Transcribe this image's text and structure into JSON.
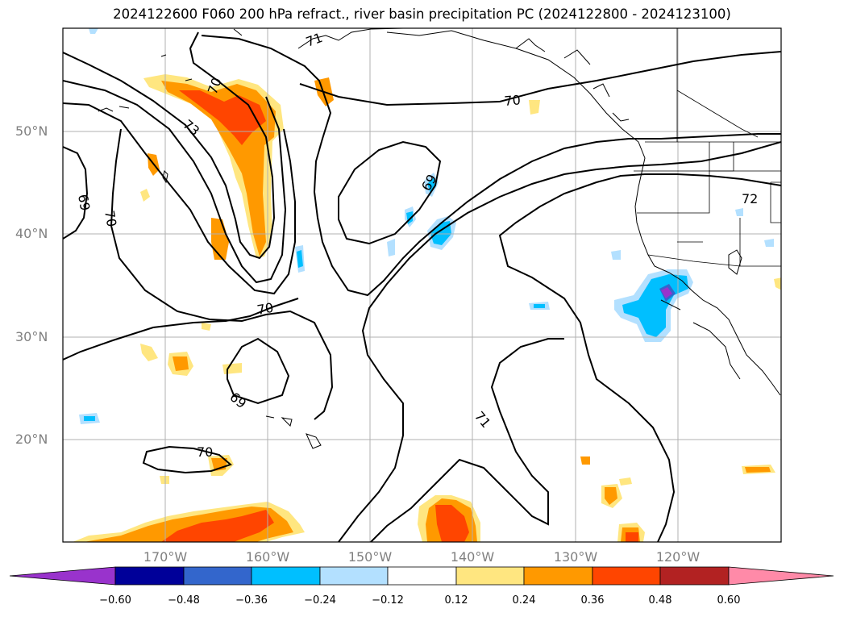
{
  "title": "2024122600 F060 200 hPa refract., river basin precipitation PC (2024122800 - 2024123100)",
  "map": {
    "lat_labels": [
      "50°N",
      "40°N",
      "30°N",
      "20°N"
    ],
    "lon_labels": [
      "170°W",
      "160°W",
      "150°W",
      "140°W",
      "130°W",
      "120°W"
    ],
    "contour_labels": [
      "71",
      "73",
      "70",
      "69",
      "70",
      "70",
      "69",
      "70",
      "69",
      "70",
      "71",
      "72"
    ],
    "contour_color": "#000000",
    "gridline_color": "#b0b0b0"
  },
  "colorbar": {
    "ticks": [
      "−0.60",
      "−0.48",
      "−0.36",
      "−0.24",
      "−0.12",
      "0.12",
      "0.24",
      "0.36",
      "0.48",
      "0.60"
    ],
    "colors": [
      "#9933cc",
      "#000099",
      "#3366cc",
      "#00bfff",
      "#b3e0ff",
      "#ffffff",
      "#ffe680",
      "#ff9900",
      "#ff4500",
      "#b22222",
      "#ff8aa8"
    ]
  }
}
